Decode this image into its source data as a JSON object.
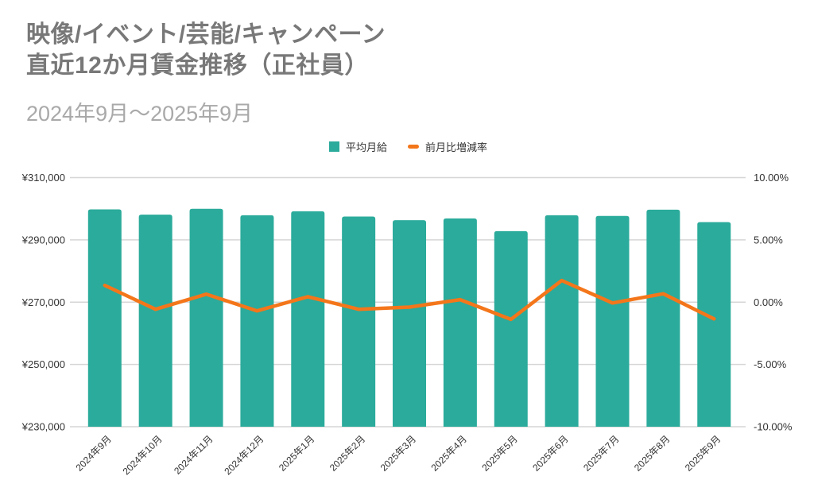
{
  "header": {
    "title_line1": "映像/イベント/芸能/キャンペーン",
    "title_line2": "直近12か月賃金推移（正社員）",
    "subtitle": "2024年9月～2025年9月"
  },
  "legend": {
    "salary_label": "平均月給",
    "pct_label": "前月比増減率"
  },
  "colors": {
    "bar": "#2BAB9B",
    "line": "#F4761A",
    "gridline": "#D6D6D6",
    "title_text": "#787878",
    "subtitle_text": "#A9A9A9",
    "axis_text": "#333333"
  },
  "chart_data": {
    "type": "bar",
    "title": "映像/イベント/芸能/キャンペーン 直近12か月賃金推移（正社員）",
    "subtitle": "2024年9月～2025年9月",
    "categories": [
      "2024年9月",
      "2024年10月",
      "2024年11月",
      "2024年12月",
      "2025年1月",
      "2025年2月",
      "2025年3月",
      "2025年4月",
      "2025年5月",
      "2025年6月",
      "2025年7月",
      "2025年8月",
      "2025年9月"
    ],
    "series": [
      {
        "name": "平均月給",
        "type": "bar",
        "axis": "left",
        "unit": "yen",
        "values": [
          299800,
          298100,
          300000,
          297900,
          299200,
          297500,
          296300,
          296900,
          292800,
          297900,
          297700,
          299700,
          295700
        ]
      },
      {
        "name": "前月比増減率",
        "type": "line",
        "axis": "right",
        "unit": "percent",
        "values": [
          1.35,
          -0.57,
          0.64,
          -0.7,
          0.44,
          -0.57,
          -0.4,
          0.2,
          -1.38,
          1.74,
          -0.07,
          0.67,
          -1.34
        ]
      }
    ],
    "left_axis": {
      "min": 230000,
      "max": 310000,
      "ticks": [
        {
          "label": "¥310,000",
          "value": 310000
        },
        {
          "label": "¥290,000",
          "value": 290000
        },
        {
          "label": "¥270,000",
          "value": 270000
        },
        {
          "label": "¥250,000",
          "value": 250000
        },
        {
          "label": "¥230,000",
          "value": 230000
        }
      ]
    },
    "right_axis": {
      "min": -10,
      "max": 10,
      "ticks": [
        {
          "label": "10.00%",
          "value": 10
        },
        {
          "label": "5.00%",
          "value": 5
        },
        {
          "label": "0.00%",
          "value": 0
        },
        {
          "label": "-5.00%",
          "value": -5
        },
        {
          "label": "-10.00%",
          "value": -10
        }
      ]
    },
    "grid": true,
    "legend_position": "top-center"
  }
}
